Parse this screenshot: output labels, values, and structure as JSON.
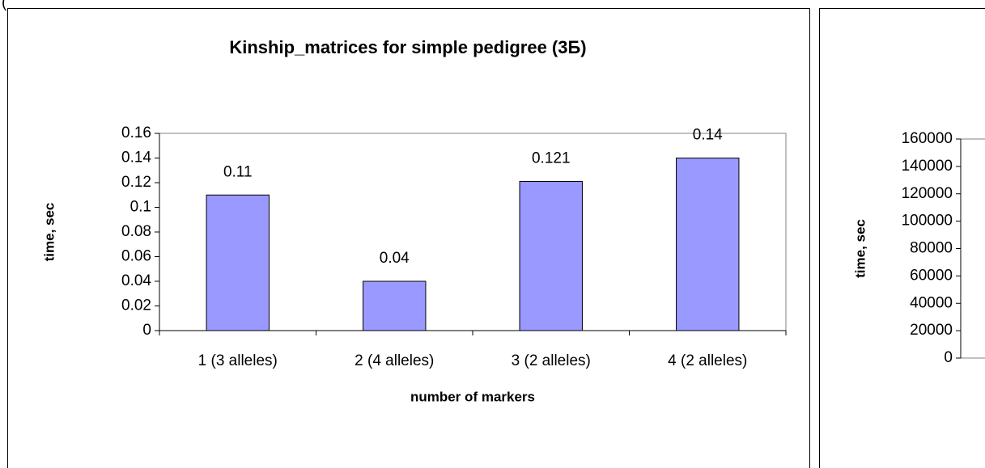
{
  "page_fragment": "(",
  "chart_data": [
    {
      "type": "bar",
      "title": "Kinship_matrices for simple pedigree (3Б)",
      "x_label": "number of markers",
      "y_label": "time, sec",
      "categories": [
        "1 (3 alleles)",
        "2 (4 alleles)",
        "3 (2 alleles)",
        "4 (2 alleles)"
      ],
      "values": [
        0.11,
        0.04,
        0.121,
        0.14
      ],
      "color": "#9999ff",
      "ylim": [
        0,
        0.16
      ],
      "yticks": [
        0,
        0.02,
        0.04,
        0.06,
        0.08,
        0.1,
        0.12,
        0.14,
        0.16
      ]
    },
    {
      "type": "bar",
      "y_label": "time, sec",
      "ylim": [
        0,
        160000
      ],
      "yticks": [
        0,
        20000,
        40000,
        60000,
        80000,
        100000,
        120000,
        140000,
        160000
      ]
    }
  ]
}
